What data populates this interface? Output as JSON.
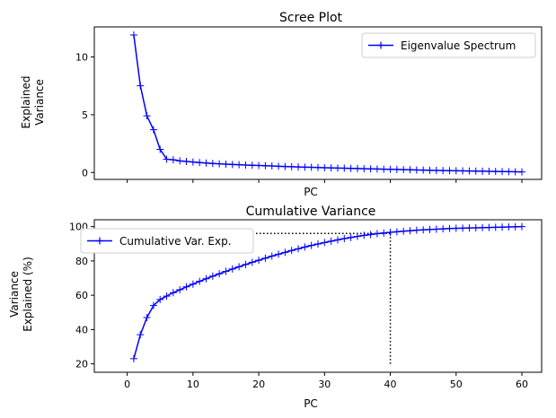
{
  "chart_data": [
    {
      "type": "line",
      "title": "Scree Plot",
      "xlabel": "PC",
      "ylabel": "Explained\nVariance",
      "xlim": [
        -5,
        63
      ],
      "ylim": [
        -0.6,
        12.6
      ],
      "xticks": [
        0,
        10,
        20,
        30,
        40,
        50,
        60
      ],
      "show_xtick_labels": false,
      "yticks": [
        0,
        5,
        10
      ],
      "grid": false,
      "legend": "upper right",
      "x": [
        1,
        2,
        3,
        4,
        5,
        6,
        7,
        8,
        9,
        10,
        11,
        12,
        13,
        14,
        15,
        16,
        17,
        18,
        19,
        20,
        21,
        22,
        23,
        24,
        25,
        26,
        27,
        28,
        29,
        30,
        31,
        32,
        33,
        34,
        35,
        36,
        37,
        38,
        39,
        40,
        41,
        42,
        43,
        44,
        45,
        46,
        47,
        48,
        49,
        50,
        51,
        52,
        53,
        54,
        55,
        56,
        57,
        58,
        59,
        60
      ],
      "series": [
        {
          "name": "Eigenvalue Spectrum",
          "color": "#0000ff",
          "marker": "+",
          "values": [
            11.9,
            7.5,
            4.9,
            3.7,
            2.0,
            1.15,
            1.1,
            1.0,
            0.95,
            0.9,
            0.86,
            0.82,
            0.78,
            0.75,
            0.72,
            0.69,
            0.67,
            0.64,
            0.62,
            0.6,
            0.58,
            0.56,
            0.54,
            0.52,
            0.5,
            0.48,
            0.46,
            0.45,
            0.43,
            0.41,
            0.4,
            0.38,
            0.37,
            0.35,
            0.34,
            0.32,
            0.31,
            0.3,
            0.28,
            0.27,
            0.26,
            0.24,
            0.23,
            0.22,
            0.21,
            0.19,
            0.18,
            0.17,
            0.16,
            0.15,
            0.14,
            0.13,
            0.12,
            0.11,
            0.1,
            0.09,
            0.08,
            0.07,
            0.06,
            0.05
          ]
        }
      ]
    },
    {
      "type": "line",
      "title": "Cumulative Variance",
      "xlabel": "PC",
      "ylabel": "Variance\nExplained (%)",
      "xlim": [
        -5,
        63
      ],
      "ylim": [
        15.1,
        104
      ],
      "xticks": [
        0,
        10,
        20,
        30,
        40,
        50,
        60
      ],
      "show_xtick_labels": true,
      "yticks": [
        20,
        40,
        60,
        80,
        100
      ],
      "grid": false,
      "legend": "upper left",
      "x": [
        1,
        2,
        3,
        4,
        5,
        6,
        7,
        8,
        9,
        10,
        11,
        12,
        13,
        14,
        15,
        16,
        17,
        18,
        19,
        20,
        21,
        22,
        23,
        24,
        25,
        26,
        27,
        28,
        29,
        30,
        31,
        32,
        33,
        34,
        35,
        36,
        37,
        38,
        39,
        40,
        41,
        42,
        43,
        44,
        45,
        46,
        47,
        48,
        49,
        50,
        51,
        52,
        53,
        54,
        55,
        56,
        57,
        58,
        59,
        60
      ],
      "series": [
        {
          "name": "Cumulative Var. Exp.",
          "color": "#0000ff",
          "marker": "+",
          "values": [
            23,
            37,
            47,
            54,
            57.5,
            59.5,
            61.5,
            63.2,
            64.9,
            66.5,
            68.1,
            69.6,
            71.1,
            72.5,
            73.9,
            75.3,
            76.6,
            77.9,
            79.2,
            80.4,
            81.6,
            82.8,
            83.9,
            85.0,
            86.1,
            87.1,
            88.1,
            89.0,
            89.9,
            90.7,
            91.5,
            92.3,
            93.0,
            93.7,
            94.3,
            94.9,
            95.4,
            95.9,
            96.3,
            96.7,
            97.0,
            97.3,
            97.6,
            97.9,
            98.1,
            98.3,
            98.5,
            98.7,
            98.9,
            99.0,
            99.1,
            99.2,
            99.3,
            99.4,
            99.5,
            99.6,
            99.7,
            99.8,
            99.9,
            100
          ]
        }
      ],
      "reference_lines": {
        "style": "dotted",
        "color": "#000000",
        "x": 40,
        "y": 96
      }
    }
  ]
}
